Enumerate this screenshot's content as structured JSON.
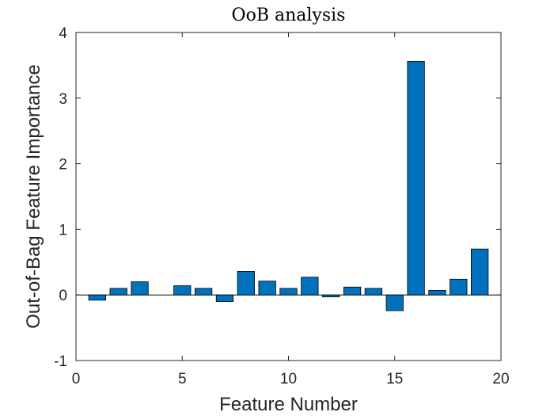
{
  "chart_data": {
    "type": "bar",
    "title": "OoB analysis",
    "xlabel": "Feature Number",
    "ylabel": "Out-of-Bag Feature Importance",
    "x": [
      1,
      2,
      3,
      4,
      5,
      6,
      7,
      8,
      9,
      10,
      11,
      12,
      13,
      14,
      15,
      16,
      17,
      18,
      19
    ],
    "values": [
      -0.08,
      0.1,
      0.2,
      0.0,
      0.14,
      0.1,
      -0.1,
      0.36,
      0.21,
      0.1,
      0.27,
      -0.03,
      0.12,
      0.1,
      -0.24,
      3.56,
      0.07,
      0.24,
      0.7
    ],
    "xlim": [
      0,
      20
    ],
    "ylim": [
      -1,
      4
    ],
    "xticks": [
      0,
      5,
      10,
      15,
      20
    ],
    "yticks": [
      -1,
      0,
      1,
      2,
      3,
      4
    ],
    "bar_color": "#0072BD",
    "bar_edge_color": "#000000",
    "grid": false,
    "box": true
  }
}
